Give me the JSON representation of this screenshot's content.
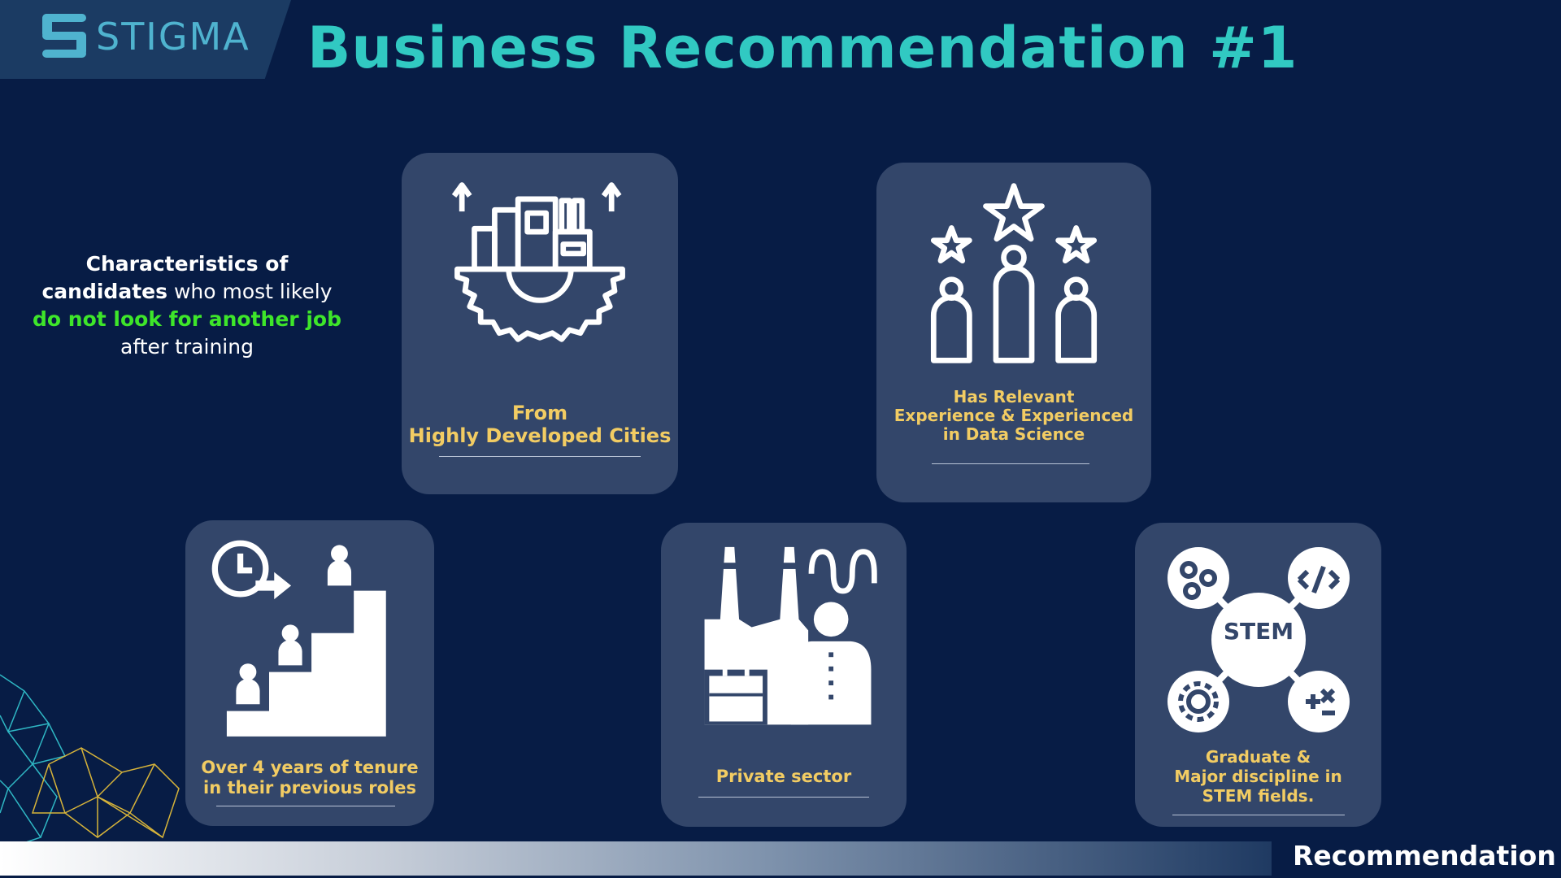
{
  "brand": {
    "logo_text": "STIGMA",
    "logo_icon": "stigma-s-logo"
  },
  "header": {
    "title": "Business Recommendation #1"
  },
  "intro": {
    "line1": "Characteristics of",
    "line2_bold": "candidates",
    "line2_rest": " who most likely",
    "line3_highlight": "do not look for another job",
    "line4": "after training"
  },
  "cards": [
    {
      "icon": "developed-city-gear-icon",
      "caption_line1": "From",
      "caption_line2": "Highly Developed Cities"
    },
    {
      "icon": "ranked-people-stars-icon",
      "caption_line1": "Has Relevant",
      "caption_line2": "Experience & Experienced",
      "caption_line3": "in Data Science"
    },
    {
      "icon": "tenure-stairs-icon",
      "caption_line1": "Over 4 years of tenure",
      "caption_line2": "in their previous roles"
    },
    {
      "icon": "factory-businessman-icon",
      "caption_line1": "Private sector"
    },
    {
      "icon": "stem-network-icon",
      "caption_line1": "Graduate &",
      "caption_line2": "Major discipline in",
      "caption_line3": "STEM fields.",
      "badge": "STEM"
    }
  ],
  "footer": {
    "section_label": "Recommendation"
  },
  "colors": {
    "background": "#071c45",
    "title": "#31c9c2",
    "card": "#33466a",
    "caption": "#f2cc63",
    "highlight": "#3ee62a",
    "logo": "#4fb3cf"
  }
}
